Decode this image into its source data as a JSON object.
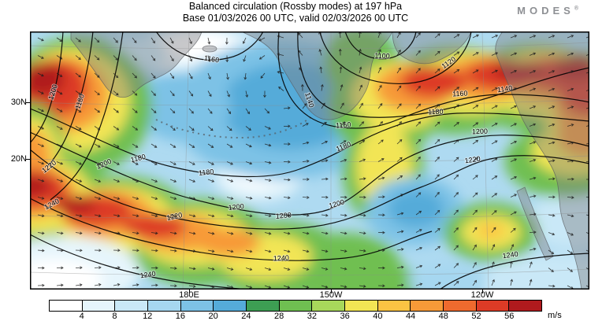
{
  "header": {
    "title": "Balanced circulation (Rossby modes) at 197 hPa",
    "subtitle": "Base 01/03/2026 00 UTC, valid 02/03/2026 00 UTC",
    "logo": {
      "text": "MODES",
      "registered": "®"
    }
  },
  "axes": {
    "lat_labels": [
      "30N",
      "20N"
    ],
    "lon_labels": [
      "180E",
      "150W",
      "120W"
    ]
  },
  "chart_data": {
    "type": "heatmap",
    "title": "Balanced circulation (Rossby modes) at 197 hPa",
    "subtitle": "Base 01/03/2026 00 UTC, valid 02/03/2026 00 UTC",
    "field": "wind speed (shaded), contour lines and wind-direction arrows",
    "units": "m/s",
    "x_ticks": [
      "180E",
      "150W",
      "120W"
    ],
    "y_ticks": [
      "30N",
      "20N"
    ],
    "contour_levels": [
      1100,
      1120,
      1140,
      1160,
      1180,
      1200,
      1220,
      1240
    ],
    "contour_label_values": [
      "1200",
      "1180",
      "1160",
      "1100",
      "1120",
      "1140",
      "1160",
      "1180",
      "1200",
      "1220",
      "1200",
      "1180",
      "1240",
      "1240",
      "1180",
      "1200",
      "1220",
      "1240",
      "1200",
      "1160",
      "1140",
      "1180",
      "1200",
      "1220",
      "1240"
    ],
    "colorbar": {
      "tick_values": [
        4,
        8,
        12,
        16,
        20,
        24,
        28,
        32,
        36,
        40,
        44,
        48,
        52,
        56
      ],
      "colors": [
        "#ffffff",
        "#e6f5fc",
        "#c9e8f7",
        "#a6d7f0",
        "#7dc2e6",
        "#55abd9",
        "#3d9e53",
        "#6fbf51",
        "#a8d85b",
        "#f2e554",
        "#fbc343",
        "#f79a38",
        "#ef6a2e",
        "#dd3b26",
        "#b01a1d"
      ],
      "units_label": "m/s"
    }
  }
}
